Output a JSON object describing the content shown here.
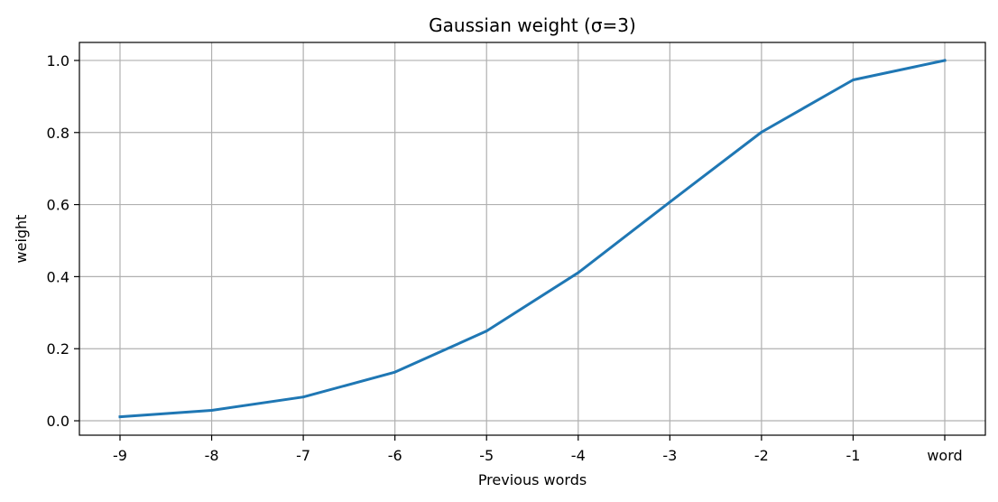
{
  "chart_data": {
    "type": "line",
    "title": "Gaussian weight (σ=3)",
    "xlabel": "Previous words",
    "ylabel": "weight",
    "categories": [
      "-9",
      "-8",
      "-7",
      "-6",
      "-5",
      "-4",
      "-3",
      "-2",
      "-1",
      "word"
    ],
    "series": [
      {
        "values": [
          0.011,
          0.029,
          0.066,
          0.135,
          0.249,
          0.411,
          0.607,
          0.801,
          0.946,
          1.0
        ]
      }
    ],
    "ylim": [
      -0.04,
      1.05
    ],
    "yticks": [
      0.0,
      0.2,
      0.4,
      0.6,
      0.8,
      1.0
    ],
    "ytick_labels": [
      "0.0",
      "0.2",
      "0.4",
      "0.6",
      "0.8",
      "1.0"
    ],
    "grid": true,
    "colors": {
      "line": "#1f77b4",
      "grid": "#b0b0b0",
      "axes": "#000000"
    }
  }
}
